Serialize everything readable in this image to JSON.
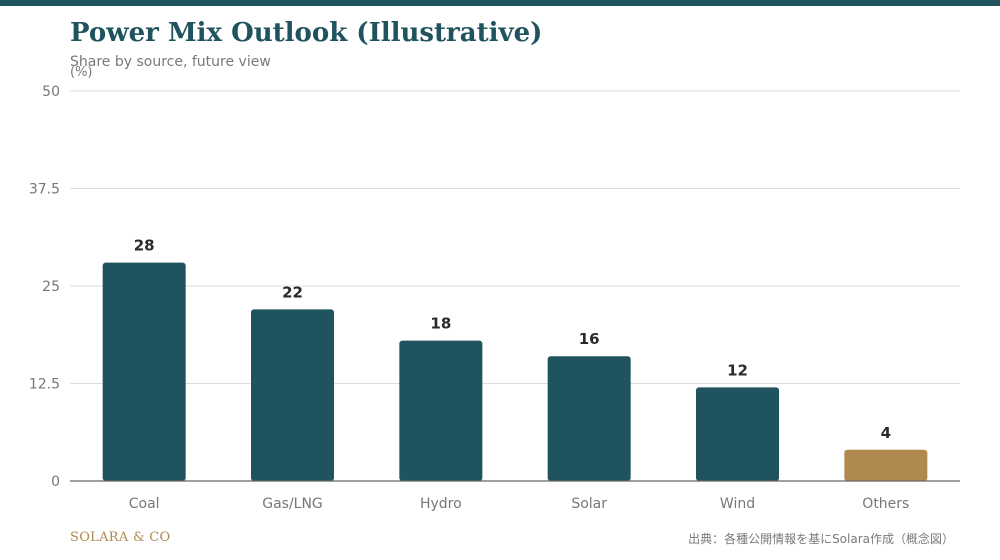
{
  "header": {
    "title": "Power Mix Outlook (Illustrative)",
    "subtitle": "Share by source, future view"
  },
  "footer": {
    "brand": "SOLARA & CO",
    "source": "出典：各種公開情報を基にSolara作成（概念図）"
  },
  "colors": {
    "primary": "#1f535e",
    "accent": "#b0894f",
    "grid": "#dddddd",
    "axis": "#666666"
  },
  "chart_data": {
    "type": "bar",
    "unit_label": "(%)",
    "categories": [
      "Coal",
      "Gas/LNG",
      "Hydro",
      "Solar",
      "Wind",
      "Others"
    ],
    "values": [
      28,
      22,
      18,
      16,
      12,
      4
    ],
    "highlight": "Others",
    "ylim": [
      0,
      50
    ],
    "yticks": [
      0,
      12.5,
      25,
      37.5,
      50
    ],
    "ytick_labels": [
      "0",
      "12.5",
      "25",
      "37.5",
      "50"
    ],
    "grid": true,
    "legend": "none"
  }
}
